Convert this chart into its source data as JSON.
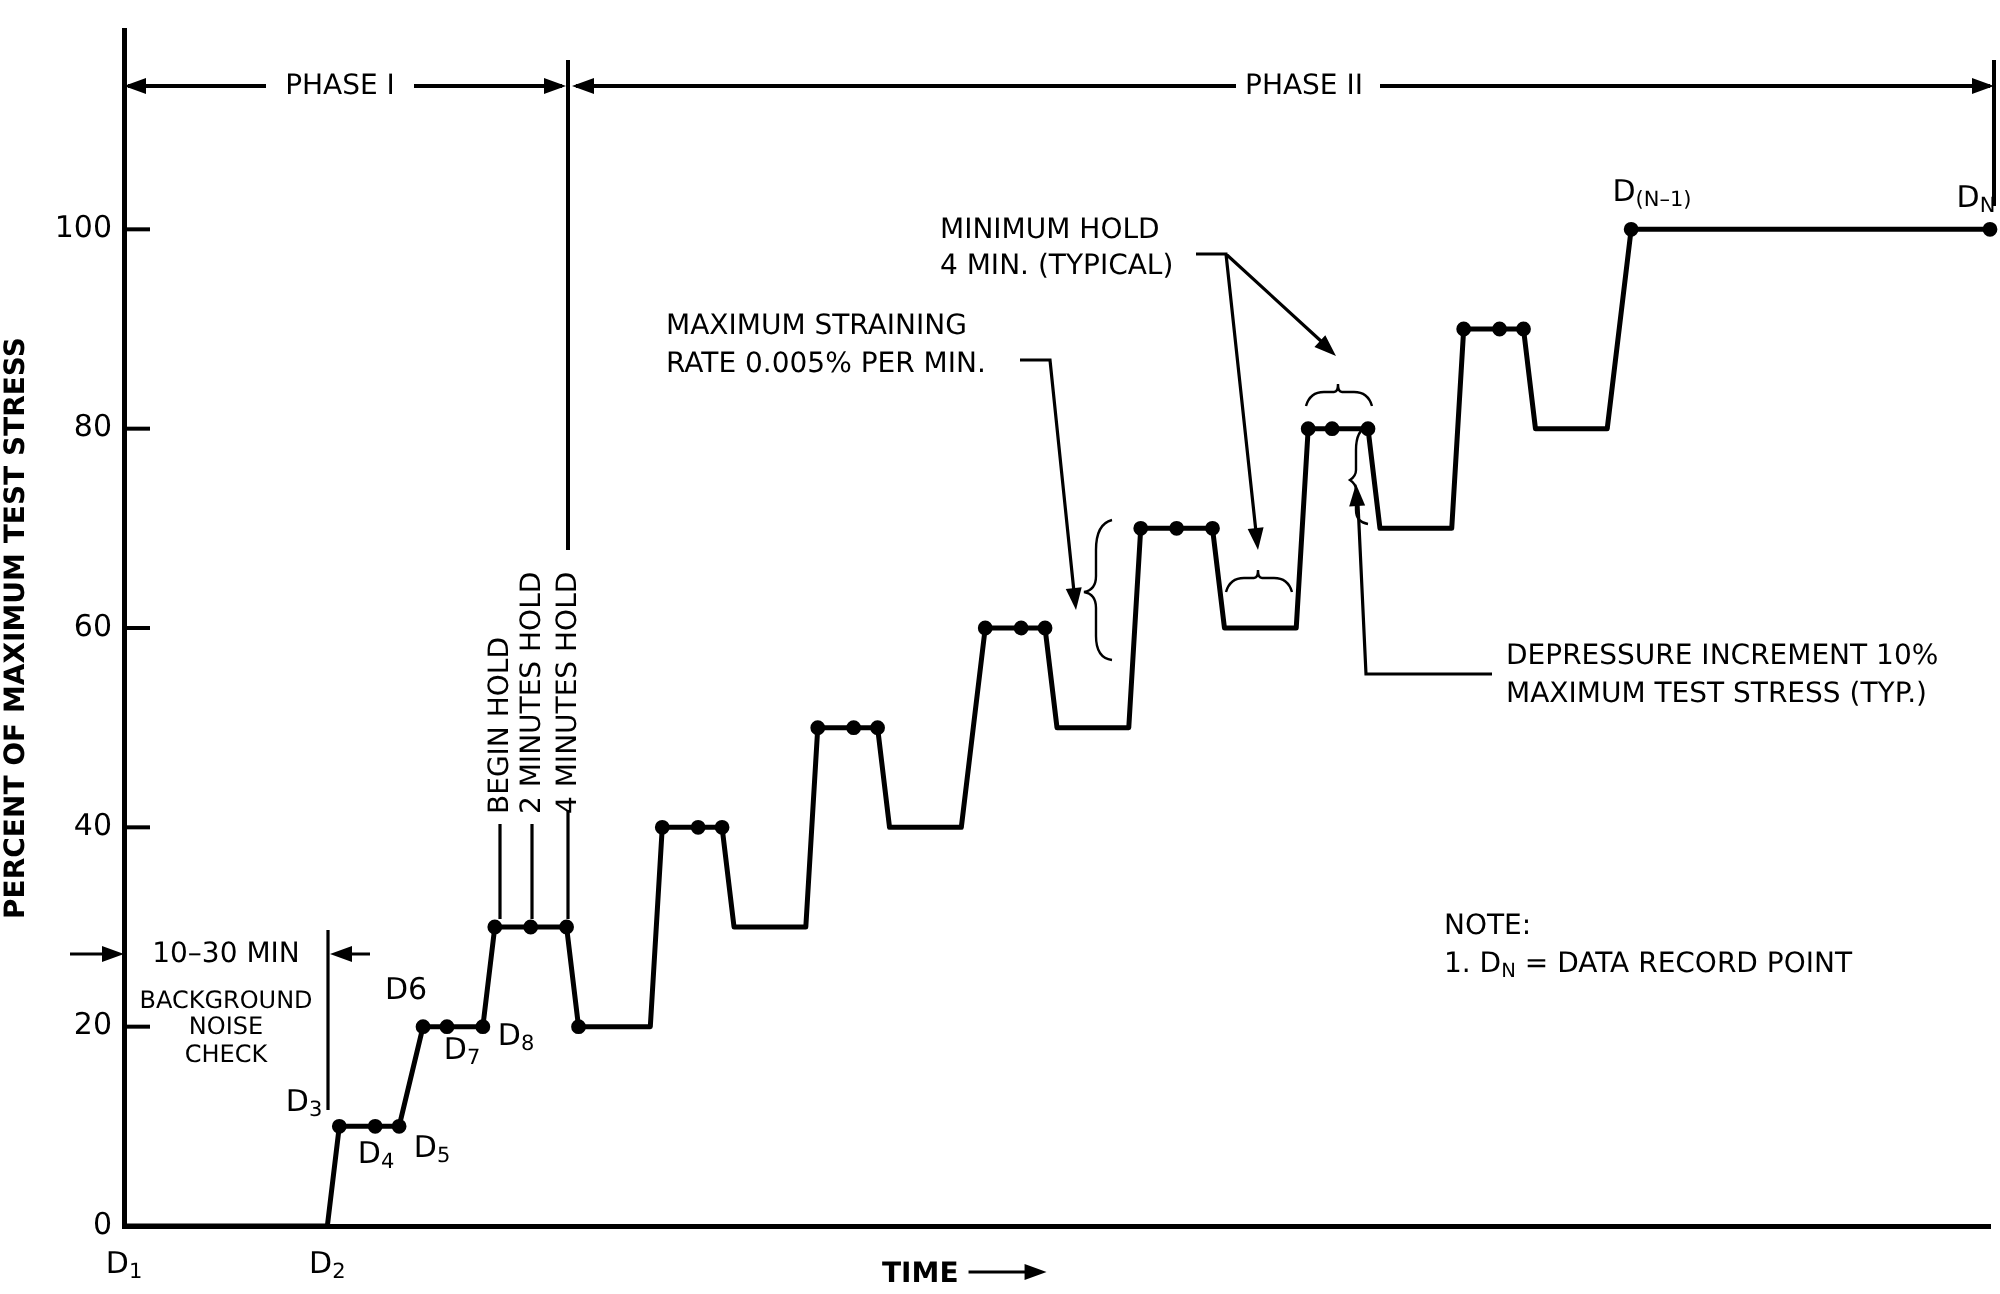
{
  "chart_data": {
    "type": "line",
    "ylabel": "PERCENT OF MAXIMUM TEST STRESS",
    "xlabel": "TIME",
    "categories": [
      "D$_{1}$",
      null,
      null,
      null,
      null,
      null,
      null,
      null,
      null,
      null,
      null,
      null,
      null,
      null,
      null,
      null,
      null,
      "D$_{2}$",
      null,
      null,
      null,
      null,
      null,
      null,
      null,
      null,
      null,
      null,
      null,
      null,
      null,
      null,
      null,
      null,
      null,
      null,
      null,
      null,
      null,
      null,
      null,
      null,
      null,
      null,
      null,
      null,
      null,
      null,
      null,
      null,
      null,
      null,
      null,
      null,
      null,
      null,
      null,
      null,
      null,
      null,
      null,
      null,
      null,
      null,
      null,
      null,
      null,
      null,
      null,
      null,
      null,
      null,
      null,
      null,
      null,
      null,
      null,
      null,
      null,
      null,
      null,
      null,
      null,
      null,
      null,
      null,
      null,
      null,
      null,
      null,
      null,
      null,
      null,
      null,
      null,
      null,
      null,
      null,
      null,
      null,
      null,
      null,
      null,
      null,
      null,
      null,
      null,
      null,
      null,
      null,
      null,
      null,
      null,
      null,
      null,
      null,
      null,
      null,
      null,
      null,
      null,
      null,
      null,
      null,
      null,
      null,
      null,
      null,
      null,
      null,
      null,
      null,
      null,
      null,
      null,
      null,
      null,
      null,
      null,
      null,
      null,
      null,
      null,
      null,
      null,
      null,
      null,
      null,
      null,
      null,
      null,
      null,
      null,
      null,
      null,
      null,
      null
    ],
    "ylim": [
      0,
      120
    ],
    "yticks": [
      0,
      20,
      40,
      60,
      80,
      100
    ],
    "grid": false,
    "annotations": [
      "PHASE I",
      "PHASE II",
      {
        "text": "BEGIN HOLD",
        "y": 30
      },
      {
        "text": "2 MINUTES HOLD",
        "y": 30
      },
      {
        "text": "4 MINUTES HOLD",
        "y": 30
      },
      "10–30 MIN",
      "BACKGROUND",
      "NOISE",
      "CHECK",
      "MAXIMUM STRAINING",
      "RATE 0.005% PER MIN.",
      "MINIMUM HOLD",
      "4 MIN. (TYPICAL)",
      "DEPRESSURE INCREMENT 10%",
      "MAXIMUM TEST STRESS (TYP.)",
      "NOTE:",
      "1. D$_{N}$ = DATA RECORD POINT",
      "D$_{3}$",
      "D$_{4}$",
      "D$_{5}$",
      "D6",
      "D$_{7}$",
      "D$_{8}$",
      "D$_{(N–1)}$",
      "D$_{N}$"
    ],
    "series": [
      {
        "color": "#000000",
        "marker": "none",
        "values": [
          0,
          null,
          null,
          null,
          null,
          null,
          null,
          null,
          null,
          null,
          null,
          null,
          null,
          null,
          null,
          null,
          null,
          0,
          10,
          null,
          null,
          null,
          null,
          10,
          null,
          20,
          null,
          null,
          null,
          null,
          20,
          30,
          null,
          null,
          null,
          null,
          null,
          30,
          20,
          null,
          null,
          null,
          null,
          null,
          20,
          40,
          null,
          null,
          null,
          null,
          40,
          30,
          null,
          null,
          null,
          null,
          null,
          30,
          50,
          null,
          null,
          null,
          null,
          50,
          40,
          null,
          null,
          null,
          null,
          null,
          40,
          null,
          60,
          null,
          null,
          null,
          null,
          60,
          50,
          null,
          null,
          null,
          null,
          null,
          50,
          70,
          null,
          null,
          null,
          null,
          null,
          70,
          60,
          null,
          null,
          null,
          null,
          null,
          60,
          80,
          null,
          null,
          null,
          null,
          80,
          70,
          null,
          null,
          null,
          null,
          null,
          70,
          90,
          null,
          null,
          null,
          null,
          90,
          80,
          null,
          null,
          null,
          null,
          null,
          80,
          null,
          100,
          null,
          null,
          null,
          null,
          null,
          null,
          null,
          null,
          null,
          null,
          null,
          null,
          null,
          null,
          null,
          null,
          null,
          null,
          null,
          null,
          null,
          null,
          null,
          null,
          null,
          null,
          null,
          null,
          null,
          100
        ]
      },
      {
        "type": "scatter",
        "color": "#000000",
        "marker": "circle",
        "values": [
          null,
          null,
          null,
          null,
          null,
          null,
          null,
          null,
          null,
          null,
          null,
          null,
          null,
          null,
          null,
          null,
          null,
          null,
          10,
          null,
          null,
          10,
          null,
          10,
          null,
          20,
          null,
          20,
          null,
          null,
          20,
          30,
          null,
          null,
          30,
          null,
          null,
          30,
          20,
          null,
          null,
          null,
          null,
          null,
          null,
          40,
          null,
          null,
          40,
          null,
          40,
          null,
          null,
          null,
          null,
          null,
          null,
          null,
          50,
          null,
          null,
          50,
          null,
          50,
          null,
          null,
          null,
          null,
          null,
          null,
          null,
          null,
          60,
          null,
          null,
          60,
          null,
          60,
          null,
          null,
          null,
          null,
          null,
          null,
          null,
          70,
          null,
          null,
          70,
          null,
          null,
          70,
          null,
          null,
          null,
          null,
          null,
          null,
          null,
          80,
          null,
          80,
          null,
          null,
          80,
          null,
          null,
          null,
          null,
          null,
          null,
          null,
          90,
          null,
          null,
          90,
          null,
          90,
          null,
          null,
          null,
          null,
          null,
          null,
          null,
          null,
          100,
          null,
          null,
          null,
          null,
          null,
          null,
          null,
          null,
          null,
          null,
          null,
          null,
          null,
          null,
          null,
          null,
          null,
          null,
          null,
          null,
          null,
          null,
          null,
          null,
          null,
          null,
          null,
          null,
          null,
          100
        ]
      }
    ]
  }
}
